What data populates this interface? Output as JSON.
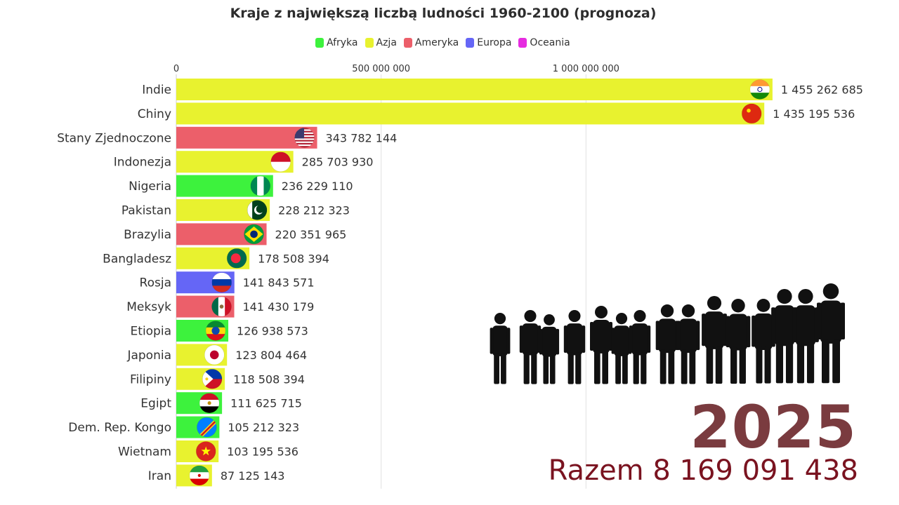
{
  "chart_data": {
    "type": "bar",
    "title": "Kraje z największą liczbą ludności 1960-2100 (prognoza)",
    "legend": [
      {
        "name": "Afryka",
        "color": "#3df23d"
      },
      {
        "name": "Azja",
        "color": "#e8f22f"
      },
      {
        "name": "Ameryka",
        "color": "#ec5f6a"
      },
      {
        "name": "Europa",
        "color": "#6566f6"
      },
      {
        "name": "Oceania",
        "color": "#e62ce0"
      }
    ],
    "legend_position": "top",
    "x_ticks": [
      0,
      500000000,
      1000000000
    ],
    "x_tick_labels": [
      "0",
      "500 000 000",
      "1 000 000 000"
    ],
    "xlim": [
      0,
      1500000000
    ],
    "grid": true,
    "categories": [
      "Indie",
      "Chiny",
      "Stany Zjednoczone",
      "Indonezja",
      "Nigeria",
      "Pakistan",
      "Brazylia",
      "Bangladesz",
      "Rosja",
      "Meksyk",
      "Etiopia",
      "Japonia",
      "Filipiny",
      "Egipt",
      "Dem. Rep. Kongo",
      "Wietnam",
      "Iran"
    ],
    "values": [
      1455262685,
      1435195536,
      343782144,
      285703930,
      236229110,
      228212323,
      220351965,
      178508394,
      141843571,
      141430179,
      126938573,
      123804464,
      118508394,
      111625715,
      105212323,
      103195536,
      87125143
    ],
    "value_labels": [
      "1 455 262 685",
      "1 435 195 536",
      "343 782 144",
      "285 703 930",
      "236 229 110",
      "228 212 323",
      "220 351 965",
      "178 508 394",
      "141 843 571",
      "141 430 179",
      "126 938 573",
      "123 804 464",
      "118 508 394",
      "111 625 715",
      "105 212 323",
      "103 195 536",
      "87 125 143"
    ],
    "regions": [
      "Azja",
      "Azja",
      "Ameryka",
      "Azja",
      "Afryka",
      "Azja",
      "Ameryka",
      "Azja",
      "Europa",
      "Ameryka",
      "Afryka",
      "Azja",
      "Azja",
      "Afryka",
      "Afryka",
      "Azja",
      "Azja"
    ],
    "flags": [
      "india-flag-icon",
      "china-flag-icon",
      "usa-flag-icon",
      "indonesia-flag-icon",
      "nigeria-flag-icon",
      "pakistan-flag-icon",
      "brazil-flag-icon",
      "bangladesh-flag-icon",
      "russia-flag-icon",
      "mexico-flag-icon",
      "ethiopia-flag-icon",
      "japan-flag-icon",
      "philippines-flag-icon",
      "egypt-flag-icon",
      "dr-congo-flag-icon",
      "vietnam-flag-icon",
      "iran-flag-icon"
    ]
  },
  "year": "2025",
  "total": "Razem 8 169 091 438",
  "decoration": {
    "icon": "children-silhouettes-icon"
  }
}
